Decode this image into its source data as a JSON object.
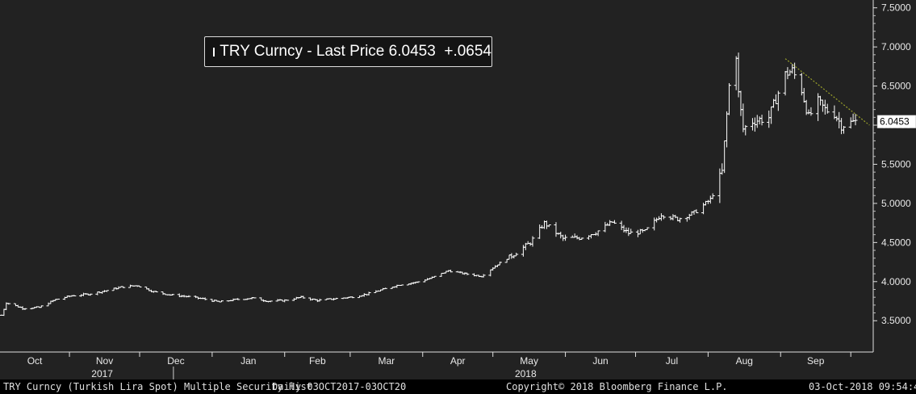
{
  "colors": {
    "background": "#222222",
    "price_bars": "#ffffff",
    "trendline": "#9aa12a",
    "footer_bg": "#000000"
  },
  "legend": {
    "series": "TRY Curncy",
    "separator": " - ",
    "metric": "Last Price",
    "value": "6.0453",
    "change": "+.0654"
  },
  "last_price_tag": "6.0453",
  "footer": {
    "security": "TRY Curncy (Turkish Lira Spot) Multiple Security Hist",
    "period": "Daily 03OCT2017-03OCT20",
    "copyright": "Copyright© 2018 Bloomberg Finance L.P.",
    "timestamp": "03-Oct-2018 09:54:40"
  },
  "chart_data": {
    "type": "ohlc",
    "title": "",
    "xlabel": "",
    "ylabel": "",
    "ylim": [
      3.1,
      7.6
    ],
    "y_ticks": [
      "3.5000",
      "4.0000",
      "4.5000",
      "5.0000",
      "5.5000",
      "6.0000",
      "6.5000",
      "7.0000",
      "7.5000"
    ],
    "y_tick_values": [
      3.5,
      4.0,
      4.5,
      5.0,
      5.5,
      6.0,
      6.5,
      7.0,
      7.5
    ],
    "x_months": [
      "Oct",
      "Nov",
      "Dec",
      "Jan",
      "Feb",
      "Mar",
      "Apr",
      "May",
      "Jun",
      "Jul",
      "Aug",
      "Sep"
    ],
    "x_years": [
      "2017",
      "2018"
    ],
    "grid": false,
    "legend_position": "top-left",
    "series": [
      {
        "name": "TRY Curncy",
        "points": [
          {
            "date": "2017-10-03",
            "close": 3.57
          },
          {
            "date": "2017-10-05",
            "close": 3.73
          },
          {
            "date": "2017-10-12",
            "close": 3.66
          },
          {
            "date": "2017-10-19",
            "close": 3.67
          },
          {
            "date": "2017-10-26",
            "close": 3.77
          },
          {
            "date": "2017-11-02",
            "close": 3.82
          },
          {
            "date": "2017-11-09",
            "close": 3.84
          },
          {
            "date": "2017-11-16",
            "close": 3.88
          },
          {
            "date": "2017-11-23",
            "close": 3.93
          },
          {
            "date": "2017-11-30",
            "close": 3.95
          },
          {
            "date": "2017-12-07",
            "close": 3.87
          },
          {
            "date": "2017-12-14",
            "close": 3.83
          },
          {
            "date": "2017-12-21",
            "close": 3.81
          },
          {
            "date": "2017-12-28",
            "close": 3.78
          },
          {
            "date": "2018-01-04",
            "close": 3.74
          },
          {
            "date": "2018-01-11",
            "close": 3.77
          },
          {
            "date": "2018-01-18",
            "close": 3.79
          },
          {
            "date": "2018-01-25",
            "close": 3.75
          },
          {
            "date": "2018-02-01",
            "close": 3.76
          },
          {
            "date": "2018-02-08",
            "close": 3.8
          },
          {
            "date": "2018-02-15",
            "close": 3.76
          },
          {
            "date": "2018-02-22",
            "close": 3.78
          },
          {
            "date": "2018-03-01",
            "close": 3.8
          },
          {
            "date": "2018-03-08",
            "close": 3.84
          },
          {
            "date": "2018-03-15",
            "close": 3.9
          },
          {
            "date": "2018-03-22",
            "close": 3.96
          },
          {
            "date": "2018-03-29",
            "close": 3.99
          },
          {
            "date": "2018-04-05",
            "close": 4.05
          },
          {
            "date": "2018-04-12",
            "close": 4.14
          },
          {
            "date": "2018-04-19",
            "close": 4.1
          },
          {
            "date": "2018-04-26",
            "close": 4.07
          },
          {
            "date": "2018-05-03",
            "close": 4.22
          },
          {
            "date": "2018-05-10",
            "close": 4.35
          },
          {
            "date": "2018-05-17",
            "close": 4.5
          },
          {
            "date": "2018-05-23",
            "close": 4.75
          },
          {
            "date": "2018-05-31",
            "close": 4.55
          },
          {
            "date": "2018-06-07",
            "close": 4.56
          },
          {
            "date": "2018-06-14",
            "close": 4.63
          },
          {
            "date": "2018-06-21",
            "close": 4.76
          },
          {
            "date": "2018-06-28",
            "close": 4.62
          },
          {
            "date": "2018-07-05",
            "close": 4.64
          },
          {
            "date": "2018-07-12",
            "close": 4.86
          },
          {
            "date": "2018-07-19",
            "close": 4.8
          },
          {
            "date": "2018-07-26",
            "close": 4.88
          },
          {
            "date": "2018-08-02",
            "close": 5.05
          },
          {
            "date": "2018-08-07",
            "close": 5.4
          },
          {
            "date": "2018-08-10",
            "close": 6.5
          },
          {
            "date": "2018-08-13",
            "close": 6.9
          },
          {
            "date": "2018-08-14",
            "close": 6.4
          },
          {
            "date": "2018-08-16",
            "close": 5.95
          },
          {
            "date": "2018-08-20",
            "close": 6.05
          },
          {
            "date": "2018-08-27",
            "close": 6.1
          },
          {
            "date": "2018-09-03",
            "close": 6.65
          },
          {
            "date": "2018-09-06",
            "close": 6.7
          },
          {
            "date": "2018-09-10",
            "close": 6.45
          },
          {
            "date": "2018-09-13",
            "close": 6.1
          },
          {
            "date": "2018-09-17",
            "close": 6.3
          },
          {
            "date": "2018-09-20",
            "close": 6.2
          },
          {
            "date": "2018-09-24",
            "close": 6.15
          },
          {
            "date": "2018-09-27",
            "close": 6.0
          },
          {
            "date": "2018-10-03",
            "close": 6.0453
          }
        ]
      }
    ],
    "trendline": {
      "from": {
        "date": "2018-09-03",
        "value": 6.85
      },
      "to": {
        "date": "2018-10-09",
        "value": 6.0
      }
    }
  }
}
